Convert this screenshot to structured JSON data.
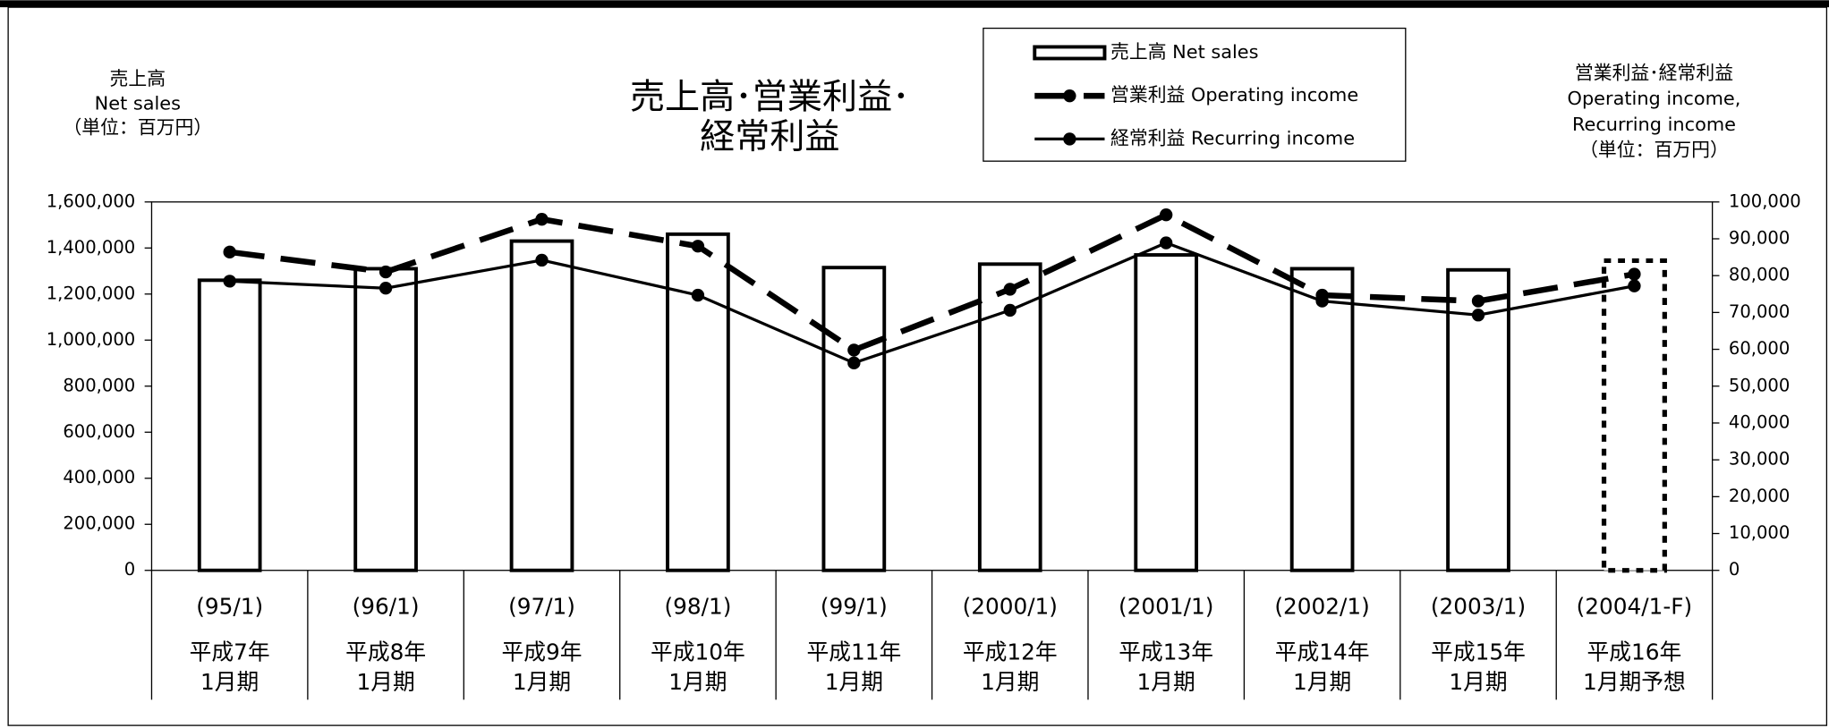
{
  "chart_data": {
    "type": "bar_line",
    "title": [
      "売上高･営業利益･",
      "経常利益"
    ],
    "y_axis_label": [
      "売上高",
      "Net sales",
      "（単位：百万円）"
    ],
    "y2_axis_label": [
      "営業利益･経常利益",
      "Operating income,",
      "Recurring income",
      "（単位：百万円）"
    ],
    "categories": [
      [
        "(95/1)",
        "平成7年",
        "1月期"
      ],
      [
        "(96/1)",
        "平成8年",
        "1月期"
      ],
      [
        "(97/1)",
        "平成9年",
        "1月期"
      ],
      [
        "(98/1)",
        "平成10年",
        "1月期"
      ],
      [
        "(99/1)",
        "平成11年",
        "1月期"
      ],
      [
        "(2000/1)",
        "平成12年",
        "1月期"
      ],
      [
        "(2001/1)",
        "平成13年",
        "1月期"
      ],
      [
        "(2002/1)",
        "平成14年",
        "1月期"
      ],
      [
        "(2003/1)",
        "平成15年",
        "1月期"
      ],
      [
        "(2004/1-F)",
        "平成16年",
        "1月期予想"
      ]
    ],
    "series": [
      {
        "name": "売上高 Net sales",
        "type": "bar",
        "color": "#000000",
        "axis": "y",
        "values": [
          1260000,
          1310000,
          1430000,
          1460000,
          1315000,
          1330000,
          1370000,
          1310000,
          1305000,
          1345000
        ],
        "bar_styles": [
          "solid",
          "solid",
          "solid",
          "solid",
          "solid",
          "solid",
          "solid",
          "solid",
          "solid",
          "dotted"
        ]
      },
      {
        "name": "営業利益 Operating income",
        "type": "line",
        "line_style": "dashed",
        "color": "#000000",
        "axis": "y2",
        "values": [
          86400,
          81000,
          95300,
          88000,
          59800,
          76300,
          96500,
          74700,
          73100,
          80400
        ]
      },
      {
        "name": "経常利益 Recurring income",
        "type": "line",
        "line_style": "solid",
        "color": "#000000",
        "axis": "y2",
        "values": [
          78500,
          76600,
          84200,
          74700,
          56300,
          70600,
          88900,
          73100,
          69300,
          77200
        ]
      }
    ],
    "ylim": [
      0,
      1600000
    ],
    "yticks": [
      0,
      {
        "value": 200000,
        "label": "200,000"
      },
      {
        "value": 400000,
        "label": "400,000"
      },
      {
        "value": 600000,
        "label": "600,000"
      },
      {
        "value": 800000,
        "label": "800,000"
      },
      {
        "value": 1000000,
        "label": "1,000,000"
      },
      {
        "value": 1200000,
        "label": "1,200,000"
      },
      {
        "value": 1400000,
        "label": "1,400,000"
      },
      {
        "value": 1600000,
        "label": "1,600,000"
      }
    ],
    "y2lim": [
      0,
      100000
    ],
    "y2ticks": [
      0,
      {
        "value": 10000,
        "label": "10,000"
      },
      {
        "value": 20000,
        "label": "20,000"
      },
      {
        "value": 30000,
        "label": "30,000"
      },
      {
        "value": 40000,
        "label": "40,000"
      },
      {
        "value": 50000,
        "label": "50,000"
      },
      {
        "value": 60000,
        "label": "60,000"
      },
      {
        "value": 70000,
        "label": "70,000"
      },
      {
        "value": 80000,
        "label": "80,000"
      },
      {
        "value": 90000,
        "label": "90,000"
      },
      {
        "value": 100000,
        "label": "100,000"
      }
    ],
    "grid": false
  }
}
